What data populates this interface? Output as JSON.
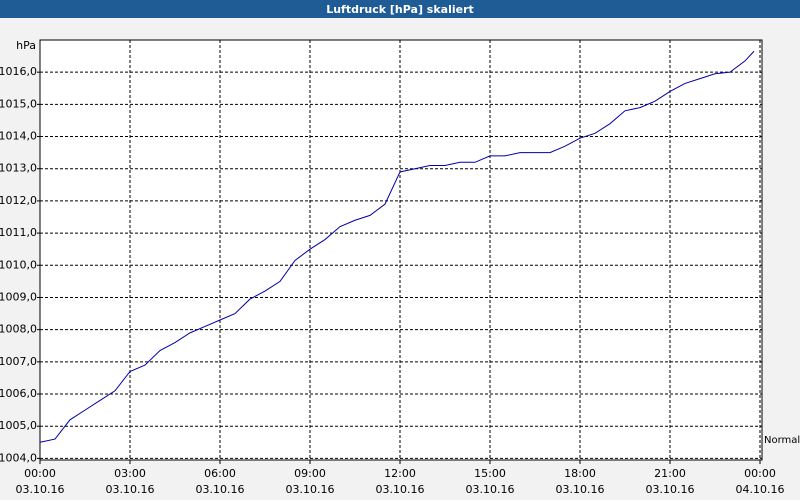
{
  "chart_data": {
    "type": "line",
    "title": "Luftdruck [hPa] skaliert",
    "y_label": "hPa",
    "x": [
      0,
      0.5,
      1,
      1.5,
      2,
      2.5,
      3,
      3.5,
      4,
      4.5,
      5,
      5.5,
      6,
      6.5,
      7,
      7.5,
      8,
      8.5,
      9,
      9.5,
      10,
      10.5,
      11,
      11.5,
      12,
      12.5,
      13,
      13.5,
      14,
      14.5,
      15,
      15.5,
      16,
      16.5,
      17,
      17.5,
      18,
      18.5,
      19,
      19.5,
      20,
      20.5,
      21,
      21.5,
      22,
      22.5,
      23,
      23.5,
      23.8
    ],
    "series": [
      {
        "name": "Normal",
        "color": "#0000a8",
        "values": [
          1004.5,
          1004.6,
          1005.2,
          1005.5,
          1005.8,
          1006.1,
          1006.7,
          1006.9,
          1007.35,
          1007.6,
          1007.9,
          1008.1,
          1008.3,
          1008.5,
          1008.95,
          1009.2,
          1009.5,
          1010.15,
          1010.5,
          1010.8,
          1011.2,
          1011.4,
          1011.55,
          1011.9,
          1012.9,
          1013.0,
          1013.1,
          1013.1,
          1013.2,
          1013.2,
          1013.4,
          1013.4,
          1013.5,
          1013.5,
          1013.5,
          1013.7,
          1013.95,
          1014.1,
          1014.4,
          1014.8,
          1014.9,
          1015.1,
          1015.4,
          1015.65,
          1015.8,
          1015.95,
          1016.0,
          1016.35,
          1016.65
        ]
      }
    ],
    "xlim": [
      0,
      24
    ],
    "xticks": [
      {
        "value": 0,
        "label": "00:00"
      },
      {
        "value": 3,
        "label": "03:00"
      },
      {
        "value": 6,
        "label": "06:00"
      },
      {
        "value": 9,
        "label": "09:00"
      },
      {
        "value": 12,
        "label": "12:00"
      },
      {
        "value": 15,
        "label": "15:00"
      },
      {
        "value": 18,
        "label": "18:00"
      },
      {
        "value": 21,
        "label": "21:00"
      },
      {
        "value": 24,
        "label": "00:00"
      }
    ],
    "xtick_dates": [
      "03.10.16",
      "03.10.16",
      "03.10.16",
      "03.10.16",
      "03.10.16",
      "03.10.16",
      "03.10.16",
      "03.10.16",
      "04.10.16"
    ],
    "ylim": [
      1003.95,
      1017.0
    ],
    "yticks": [
      {
        "value": 1004,
        "label": "1004,0"
      },
      {
        "value": 1005,
        "label": "1005,0"
      },
      {
        "value": 1006,
        "label": "1006,0"
      },
      {
        "value": 1007,
        "label": "1007,0"
      },
      {
        "value": 1008,
        "label": "1008,0"
      },
      {
        "value": 1009,
        "label": "1009,0"
      },
      {
        "value": 1010,
        "label": "1010,0"
      },
      {
        "value": 1011,
        "label": "1011,0"
      },
      {
        "value": 1012,
        "label": "1012,0"
      },
      {
        "value": 1013,
        "label": "1013,0"
      },
      {
        "value": 1014,
        "label": "1014,0"
      },
      {
        "value": 1015,
        "label": "1015,0"
      },
      {
        "value": 1016,
        "label": "1016,0"
      }
    ],
    "grid": true
  }
}
